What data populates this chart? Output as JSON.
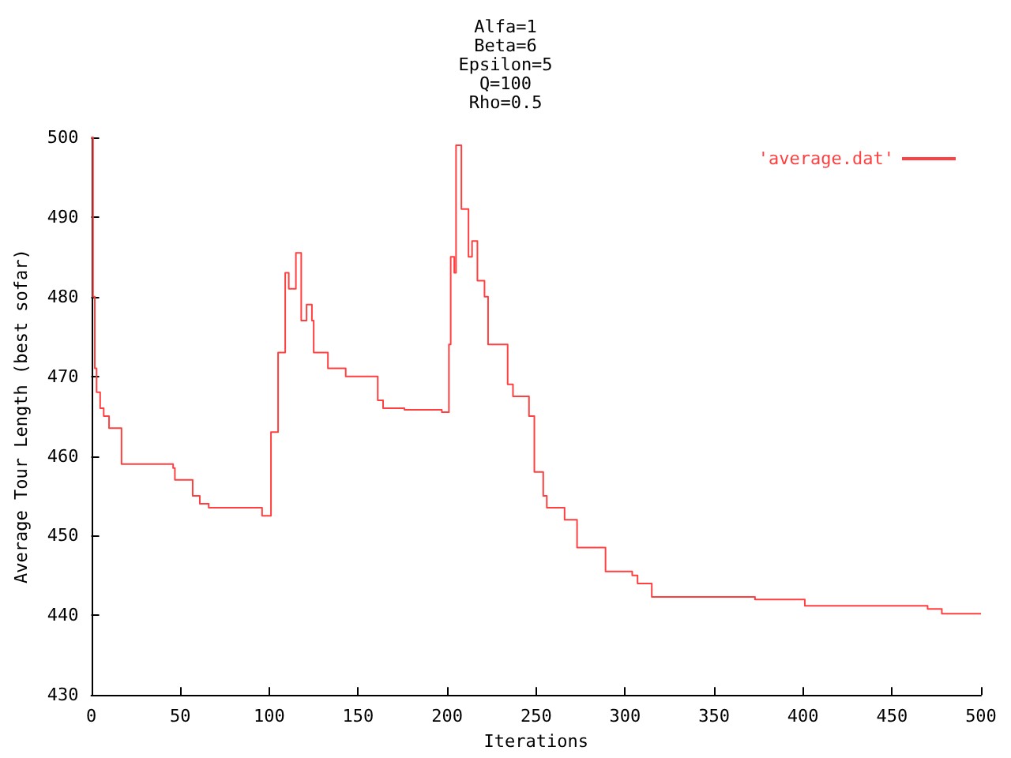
{
  "chart_data": {
    "type": "step",
    "title": "Alfa=1\nBeta=6\nEpsilon=5\nQ=100\nRho=0.5",
    "xlabel": "Iterations",
    "ylabel": "Average Tour Length (best sofar)",
    "xlim": [
      0,
      500
    ],
    "xticks": [
      0,
      50,
      100,
      150,
      200,
      250,
      300,
      350,
      400,
      450,
      500
    ],
    "ylim": [
      430,
      500
    ],
    "yticks": [
      430,
      440,
      450,
      460,
      470,
      480,
      490,
      500
    ],
    "grid": false,
    "legend": "top right",
    "marker": "none",
    "series": [
      {
        "name": "'average.dat'",
        "color": "#ff4040",
        "x": [
          0,
          1,
          2,
          3,
          5,
          7,
          10,
          17,
          46,
          47,
          57,
          61,
          66,
          96,
          101,
          105,
          109,
          111,
          113,
          115,
          118,
          121,
          124,
          125,
          133,
          143,
          161,
          164,
          176,
          197,
          201,
          202,
          204,
          205,
          208,
          212,
          214,
          217,
          221,
          223,
          234,
          237,
          246,
          249,
          254,
          256,
          266,
          273,
          289,
          304,
          307,
          315,
          373,
          401,
          470,
          478,
          500
        ],
        "values": [
          500,
          480,
          471,
          468,
          466,
          465,
          463.5,
          459,
          458.5,
          457,
          455,
          454,
          453.5,
          452.5,
          463,
          473,
          483,
          481,
          481,
          485.5,
          477,
          479,
          477,
          473,
          471,
          470,
          467,
          466,
          465.8,
          465.5,
          474,
          485,
          483,
          499,
          491,
          485,
          487,
          482,
          480,
          474,
          469,
          467.5,
          465,
          458,
          455,
          453.5,
          452,
          448.5,
          445.5,
          445,
          444,
          442.3,
          442,
          441.2,
          440.8,
          440.2,
          440.2
        ]
      }
    ]
  }
}
